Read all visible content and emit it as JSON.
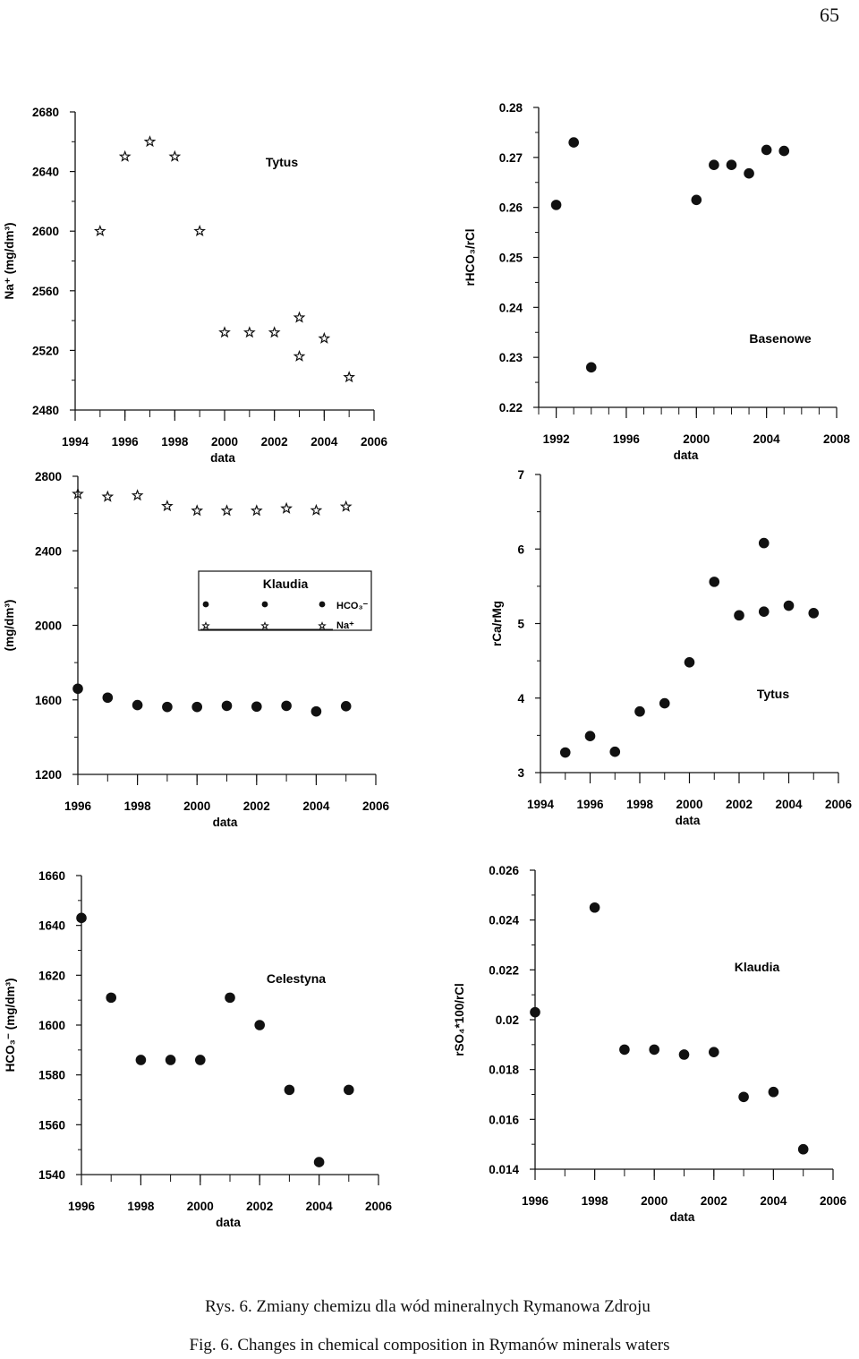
{
  "page_number": "65",
  "caption_pl": "Rys. 6. Zmiany chemizu dla wód mineralnych Rymanowa Zdroju",
  "caption_en": "Fig. 6. Changes in chemical composition in Rymanów minerals waters",
  "chart_data": [
    {
      "id": "tytus-na",
      "type": "scatter",
      "title": "",
      "annotation": "Tytus",
      "xlabel": "data",
      "ylabel": "Na⁺ (mg/dm³)",
      "xlim": [
        1994,
        2006
      ],
      "ylim": [
        2480,
        2680
      ],
      "xticks": [
        "1994",
        "1996",
        "1998",
        "2000",
        "2002",
        "2004",
        "2006"
      ],
      "yticks": [
        "2480",
        "2520",
        "2560",
        "2600",
        "2640",
        "2680"
      ],
      "series": [
        {
          "marker": "star",
          "points": [
            [
              1995,
              2600
            ],
            [
              1996,
              2650
            ],
            [
              1997,
              2660
            ],
            [
              1998,
              2650
            ],
            [
              1999,
              2600
            ],
            [
              2000,
              2532
            ],
            [
              2001,
              2532
            ],
            [
              2002,
              2532
            ],
            [
              2003,
              2542
            ],
            [
              2003,
              2516
            ],
            [
              2004,
              2528
            ],
            [
              2005,
              2502
            ]
          ]
        }
      ]
    },
    {
      "id": "basenowe-rhco3",
      "type": "scatter",
      "title": "",
      "annotation": "Basenowe",
      "xlabel": "data",
      "ylabel": "rHCO₃/rCl",
      "xlim": [
        1991,
        2008
      ],
      "ylim": [
        0.22,
        0.28
      ],
      "xticks": [
        "1992",
        "1996",
        "2000",
        "2004",
        "2008"
      ],
      "yticks": [
        "0.22",
        "0.23",
        "0.24",
        "0.25",
        "0.26",
        "0.27",
        "0.28"
      ],
      "series": [
        {
          "marker": "dot",
          "points": [
            [
              1992,
              0.2605
            ],
            [
              1993,
              0.273
            ],
            [
              1994,
              0.228
            ],
            [
              2000,
              0.2615
            ],
            [
              2001,
              0.2685
            ],
            [
              2002,
              0.2685
            ],
            [
              2003,
              0.2668
            ],
            [
              2004,
              0.2715
            ],
            [
              2005,
              0.2713
            ]
          ]
        }
      ]
    },
    {
      "id": "klaudia-hco3-na",
      "type": "scatter",
      "title": "",
      "xlabel": "data",
      "ylabel": "(mg/dm³)",
      "xlim": [
        1996,
        2006
      ],
      "ylim": [
        1200,
        2800
      ],
      "xticks": [
        "1996",
        "1998",
        "2000",
        "2002",
        "2004",
        "2006"
      ],
      "yticks": [
        "1200",
        "1600",
        "2000",
        "2400",
        "2800"
      ],
      "legend": {
        "title": "Klaudia",
        "entries": [
          "HCO₃⁻",
          "Na⁺"
        ]
      },
      "series": [
        {
          "name": "HCO₃⁻",
          "marker": "dot",
          "points": [
            [
              1996,
              1660
            ],
            [
              1997,
              1612
            ],
            [
              1998,
              1572
            ],
            [
              1999,
              1562
            ],
            [
              2000,
              1562
            ],
            [
              2001,
              1568
            ],
            [
              2002,
              1564
            ],
            [
              2003,
              1568
            ],
            [
              2004,
              1538
            ],
            [
              2005,
              1566
            ]
          ]
        },
        {
          "name": "Na⁺",
          "marker": "star",
          "points": [
            [
              1996,
              2705
            ],
            [
              1997,
              2690
            ],
            [
              1998,
              2697
            ],
            [
              1999,
              2640
            ],
            [
              2000,
              2615
            ],
            [
              2001,
              2615
            ],
            [
              2002,
              2615
            ],
            [
              2003,
              2627
            ],
            [
              2004,
              2617
            ],
            [
              2005,
              2637
            ]
          ]
        }
      ]
    },
    {
      "id": "tytus-rcamg",
      "type": "scatter",
      "title": "",
      "annotation": "Tytus",
      "xlabel": "data",
      "ylabel": "rCa/rMg",
      "xlim": [
        1994,
        2006
      ],
      "ylim": [
        3,
        7
      ],
      "xticks": [
        "1994",
        "1996",
        "1998",
        "2000",
        "2002",
        "2004",
        "2006"
      ],
      "yticks": [
        "3",
        "4",
        "5",
        "6",
        "7"
      ],
      "series": [
        {
          "marker": "dot",
          "points": [
            [
              1995,
              3.27
            ],
            [
              1996,
              3.49
            ],
            [
              1997,
              3.28
            ],
            [
              1998,
              3.82
            ],
            [
              1999,
              3.93
            ],
            [
              2000,
              4.48
            ],
            [
              2001,
              5.56
            ],
            [
              2002,
              5.11
            ],
            [
              2003,
              6.08
            ],
            [
              2003,
              5.16
            ],
            [
              2004,
              5.24
            ],
            [
              2005,
              5.14
            ]
          ]
        }
      ]
    },
    {
      "id": "celestyna-hco3",
      "type": "scatter",
      "title": "",
      "annotation": "Celestyna",
      "xlabel": "data",
      "ylabel": "HCO₃⁻ (mg/dm³)",
      "xlim": [
        1996,
        2006
      ],
      "ylim": [
        1540,
        1660
      ],
      "xticks": [
        "1996",
        "1998",
        "2000",
        "2002",
        "2004",
        "2006"
      ],
      "yticks": [
        "1540",
        "1560",
        "1580",
        "1600",
        "1620",
        "1640",
        "1660"
      ],
      "series": [
        {
          "marker": "dot",
          "points": [
            [
              1996,
              1643
            ],
            [
              1997,
              1611
            ],
            [
              1998,
              1586
            ],
            [
              1999,
              1586
            ],
            [
              2000,
              1586
            ],
            [
              2001,
              1611
            ],
            [
              2002,
              1600
            ],
            [
              2003,
              1574
            ],
            [
              2004,
              1545
            ],
            [
              2005,
              1574
            ]
          ]
        }
      ]
    },
    {
      "id": "klaudia-rso4",
      "type": "scatter",
      "title": "",
      "annotation": "Klaudia",
      "xlabel": "data",
      "ylabel": "rSO₄*100/rCl",
      "xlim": [
        1996,
        2006
      ],
      "ylim": [
        0.014,
        0.026
      ],
      "xticks": [
        "1996",
        "1998",
        "2000",
        "2002",
        "2004",
        "2006"
      ],
      "yticks": [
        "0.014",
        "0.016",
        "0.018",
        "0.02",
        "0.022",
        "0.024",
        "0.026"
      ],
      "series": [
        {
          "marker": "dot",
          "points": [
            [
              1996,
              0.0203
            ],
            [
              1998,
              0.0245
            ],
            [
              1999,
              0.0188
            ],
            [
              2000,
              0.0188
            ],
            [
              2001,
              0.0186
            ],
            [
              2002,
              0.0187
            ],
            [
              2003,
              0.0169
            ],
            [
              2004,
              0.0171
            ],
            [
              2005,
              0.0148
            ]
          ]
        }
      ]
    }
  ]
}
